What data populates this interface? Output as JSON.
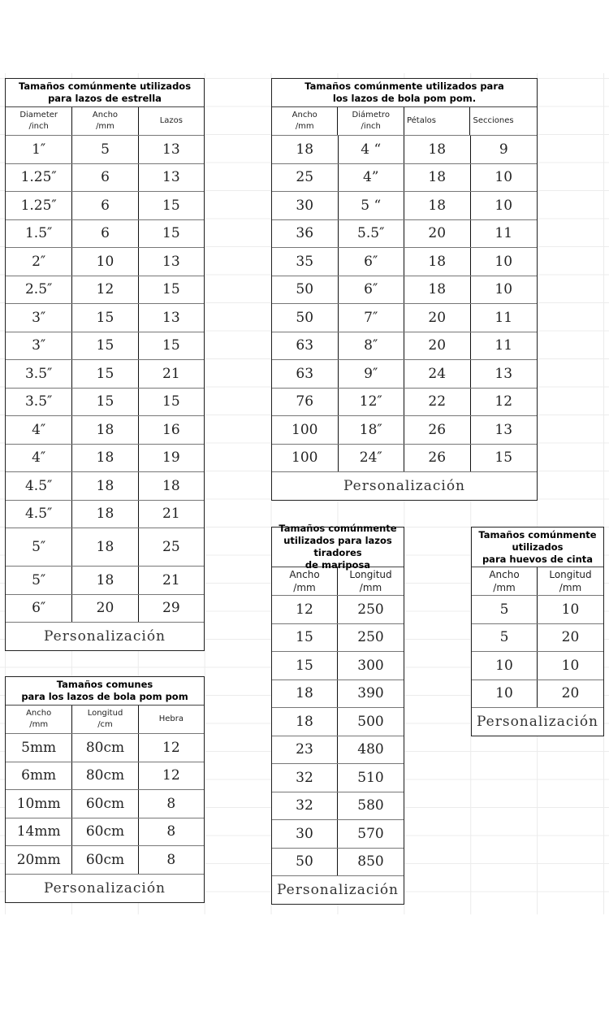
{
  "tables": [
    {
      "id": "star",
      "title": "Tamaños comúnmente utilizados\npara lazos de estrella",
      "headers": [
        "Diameter\n/inch",
        "Ancho\n/mm",
        "Lazos"
      ],
      "rows": [
        [
          "1″",
          "5",
          "13"
        ],
        [
          "1.25″",
          "6",
          "13"
        ],
        [
          "1.25″",
          "6",
          "15"
        ],
        [
          "1.5″",
          "6",
          "15"
        ],
        [
          "2″",
          "10",
          "13"
        ],
        [
          "2.5″",
          "12",
          "15"
        ],
        [
          "3″",
          "15",
          "13"
        ],
        [
          "3″",
          "15",
          "15"
        ],
        [
          "3.5″",
          "15",
          "21"
        ],
        [
          "3.5″",
          "15",
          "15"
        ],
        [
          "4″",
          "18",
          "16"
        ],
        [
          "4″",
          "18",
          "19"
        ],
        [
          "4.5″",
          "18",
          "18"
        ],
        [
          "4.5″",
          "18",
          "21"
        ],
        [
          "5″",
          "18",
          "25"
        ],
        [
          "5″",
          "18",
          "21"
        ],
        [
          "6″",
          "20",
          "29"
        ]
      ],
      "footer": "Personalización"
    },
    {
      "id": "pompom",
      "title": "Tamaños comúnmente utilizados para\nlos lazos de bola pom pom.",
      "headers": [
        "Ancho\n/mm",
        "Diámetro\n/inch",
        "Pétalos",
        "Secciones"
      ],
      "rows": [
        [
          "18",
          "4 “",
          "18",
          "9"
        ],
        [
          "25",
          "4”",
          "18",
          "10"
        ],
        [
          "30",
          "5 “",
          "18",
          "10"
        ],
        [
          "36",
          "5.5″",
          "20",
          "11"
        ],
        [
          "35",
          "6″",
          "18",
          "10"
        ],
        [
          "50",
          "6″",
          "18",
          "10"
        ],
        [
          "50",
          "7″",
          "20",
          "11"
        ],
        [
          "63",
          "8″",
          "20",
          "11"
        ],
        [
          "63",
          "9″",
          "24",
          "13"
        ],
        [
          "76",
          "12″",
          "22",
          "12"
        ],
        [
          "100",
          "18″",
          "26",
          "13"
        ],
        [
          "100",
          "24″",
          "26",
          "15"
        ]
      ],
      "footer": "Personalización"
    },
    {
      "id": "common",
      "title": "Tamaños comunes\npara los lazos de bola pom pom",
      "headers": [
        "Ancho\n/mm",
        "Longitud\n/cm",
        "Hebra"
      ],
      "rows": [
        [
          "5mm",
          "80cm",
          "12"
        ],
        [
          "6mm",
          "80cm",
          "12"
        ],
        [
          "10mm",
          "60cm",
          "8"
        ],
        [
          "14mm",
          "60cm",
          "8"
        ],
        [
          "20mm",
          "60cm",
          "8"
        ]
      ],
      "footer": "Personalización"
    },
    {
      "id": "butterfly",
      "title": "Tamaños comúnmente\nutilizados para lazos tiradores\nde mariposa",
      "headers": [
        "Ancho\n/mm",
        "Longitud\n/mm"
      ],
      "rows": [
        [
          "12",
          "250"
        ],
        [
          "15",
          "250"
        ],
        [
          "15",
          "300"
        ],
        [
          "18",
          "390"
        ],
        [
          "18",
          "500"
        ],
        [
          "23",
          "480"
        ],
        [
          "32",
          "510"
        ],
        [
          "32",
          "580"
        ],
        [
          "30",
          "570"
        ],
        [
          "50",
          "850"
        ]
      ],
      "footer": "Personalización"
    },
    {
      "id": "eggs",
      "title": "Tamaños comúnmente\nutilizados\npara huevos de cinta",
      "headers": [
        "Ancho\n/mm",
        "Longitud\n/mm"
      ],
      "rows": [
        [
          "5",
          "10"
        ],
        [
          "5",
          "20"
        ],
        [
          "10",
          "10"
        ],
        [
          "10",
          "20"
        ]
      ],
      "footer": "Personalización"
    }
  ]
}
